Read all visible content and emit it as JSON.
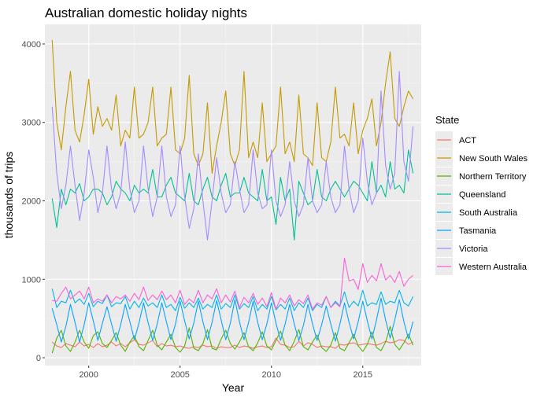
{
  "chart_data": {
    "type": "line",
    "title": "Australian domestic holiday nights",
    "xlabel": "Year",
    "ylabel": "thousands of trips",
    "x_ticks": [
      2000,
      2005,
      2010,
      2015
    ],
    "y_ticks": [
      0,
      1000,
      2000,
      3000,
      4000
    ],
    "xlim": [
      1997.6,
      2018.2
    ],
    "ylim": [
      -100,
      4250
    ],
    "grid": true,
    "legend_title": "State",
    "legend_position": "right",
    "x": [
      1998.0,
      1998.25,
      1998.5,
      1998.75,
      1999.0,
      1999.25,
      1999.5,
      1999.75,
      2000.0,
      2000.25,
      2000.5,
      2000.75,
      2001.0,
      2001.25,
      2001.5,
      2001.75,
      2002.0,
      2002.25,
      2002.5,
      2002.75,
      2003.0,
      2003.25,
      2003.5,
      2003.75,
      2004.0,
      2004.25,
      2004.5,
      2004.75,
      2005.0,
      2005.25,
      2005.5,
      2005.75,
      2006.0,
      2006.25,
      2006.5,
      2006.75,
      2007.0,
      2007.25,
      2007.5,
      2007.75,
      2008.0,
      2008.25,
      2008.5,
      2008.75,
      2009.0,
      2009.25,
      2009.5,
      2009.75,
      2010.0,
      2010.25,
      2010.5,
      2010.75,
      2011.0,
      2011.25,
      2011.5,
      2011.75,
      2012.0,
      2012.25,
      2012.5,
      2012.75,
      2013.0,
      2013.25,
      2013.5,
      2013.75,
      2014.0,
      2014.25,
      2014.5,
      2014.75,
      2015.0,
      2015.25,
      2015.5,
      2015.75,
      2016.0,
      2016.25,
      2016.5,
      2016.75,
      2017.0,
      2017.25,
      2017.5,
      2017.75
    ],
    "series": [
      {
        "name": "ACT",
        "color": "#F8766D",
        "values": [
          200,
          150,
          130,
          180,
          160,
          140,
          200,
          150,
          170,
          130,
          180,
          140,
          160,
          200,
          150,
          180,
          140,
          190,
          230,
          170,
          160,
          190,
          220,
          140,
          180,
          150,
          160,
          140,
          150,
          130,
          120,
          140,
          130,
          160,
          140,
          150,
          120,
          140,
          130,
          130,
          160,
          130,
          150,
          140,
          120,
          140,
          150,
          130,
          140,
          250,
          170,
          160,
          130,
          140,
          210,
          150,
          190,
          170,
          130,
          150,
          140,
          140,
          120,
          170,
          160,
          180,
          190,
          160,
          170,
          180,
          170,
          160,
          180,
          210,
          190,
          200,
          230,
          220,
          170,
          200
        ]
      },
      {
        "name": "New South Wales",
        "color": "#C49A00",
        "values": [
          4050,
          3000,
          2650,
          3200,
          3650,
          2900,
          2750,
          3100,
          3550,
          2850,
          3200,
          2950,
          3050,
          2900,
          3350,
          2700,
          2900,
          2800,
          3450,
          2800,
          2850,
          3000,
          3450,
          2700,
          2800,
          2850,
          3450,
          2650,
          2600,
          2800,
          3600,
          2600,
          2450,
          2600,
          3250,
          2350,
          2700,
          3000,
          3400,
          2600,
          2450,
          2650,
          3650,
          2550,
          2750,
          2550,
          3250,
          2500,
          2600,
          2700,
          3450,
          2600,
          2750,
          2500,
          3350,
          2600,
          2550,
          2450,
          3250,
          2550,
          2500,
          2750,
          3450,
          2800,
          2850,
          2700,
          3250,
          2600,
          2900,
          3050,
          3300,
          2700,
          3000,
          3500,
          3900,
          3050,
          2950,
          3200,
          3400,
          3300
        ]
      },
      {
        "name": "Northern Territory",
        "color": "#53B400",
        "values": [
          60,
          250,
          350,
          150,
          80,
          200,
          350,
          200,
          120,
          280,
          330,
          180,
          130,
          220,
          320,
          160,
          80,
          200,
          280,
          140,
          90,
          220,
          350,
          160,
          100,
          200,
          300,
          130,
          70,
          150,
          380,
          120,
          90,
          180,
          360,
          120,
          100,
          240,
          350,
          180,
          110,
          200,
          320,
          140,
          90,
          190,
          330,
          150,
          100,
          220,
          340,
          160,
          90,
          210,
          360,
          140,
          100,
          200,
          290,
          130,
          80,
          160,
          320,
          120,
          90,
          190,
          300,
          150,
          80,
          170,
          330,
          130,
          90,
          200,
          400,
          170,
          100,
          190,
          300,
          160
        ]
      },
      {
        "name": "Queensland",
        "color": "#00C094",
        "values": [
          2030,
          1660,
          2150,
          1950,
          2150,
          2100,
          2220,
          2000,
          2050,
          2150,
          2150,
          2100,
          1950,
          2050,
          2250,
          2150,
          2100,
          2000,
          2200,
          2100,
          2150,
          2100,
          2400,
          2050,
          2050,
          2200,
          2300,
          2100,
          2050,
          2000,
          2350,
          2000,
          1950,
          2150,
          2300,
          2050,
          2000,
          2200,
          2350,
          2050,
          2100,
          2100,
          2300,
          2100,
          2050,
          2000,
          2400,
          2000,
          2050,
          1700,
          2300,
          2000,
          2150,
          1500,
          2250,
          2100,
          1950,
          2000,
          2400,
          2050,
          2000,
          2150,
          2250,
          2150,
          2050,
          2150,
          2250,
          2200,
          2100,
          2000,
          2500,
          2100,
          2200,
          2050,
          2500,
          2150,
          2200,
          2100,
          2650,
          2350
        ]
      },
      {
        "name": "South Australia",
        "color": "#00B6EB",
        "values": [
          880,
          640,
          720,
          700,
          860,
          700,
          750,
          680,
          820,
          650,
          720,
          690,
          800,
          650,
          700,
          690,
          780,
          620,
          720,
          640,
          760,
          660,
          700,
          640,
          800,
          640,
          680,
          600,
          770,
          630,
          700,
          640,
          760,
          620,
          680,
          640,
          800,
          620,
          690,
          640,
          800,
          620,
          690,
          640,
          780,
          600,
          680,
          620,
          780,
          610,
          680,
          620,
          760,
          600,
          700,
          640,
          760,
          600,
          680,
          640,
          780,
          640,
          720,
          660,
          840,
          640,
          720,
          660,
          860,
          660,
          700,
          680,
          840,
          680,
          720,
          700,
          860,
          700,
          660,
          780
        ]
      },
      {
        "name": "Tasmania",
        "color": "#06A4FF",
        "values": [
          630,
          420,
          200,
          400,
          680,
          450,
          200,
          420,
          700,
          470,
          220,
          440,
          650,
          430,
          210,
          420,
          680,
          460,
          230,
          440,
          700,
          450,
          220,
          430,
          700,
          460,
          230,
          430,
          720,
          470,
          240,
          440,
          720,
          460,
          230,
          450,
          730,
          480,
          230,
          440,
          740,
          460,
          230,
          450,
          720,
          450,
          230,
          430,
          700,
          440,
          220,
          430,
          680,
          430,
          220,
          410,
          680,
          430,
          220,
          420,
          660,
          430,
          210,
          430,
          700,
          450,
          240,
          460,
          720,
          470,
          240,
          480,
          760,
          480,
          250,
          480,
          740,
          460,
          240,
          460
        ]
      },
      {
        "name": "Victoria",
        "color": "#A58AFF",
        "values": [
          3200,
          2350,
          1900,
          2200,
          2700,
          2200,
          1750,
          2100,
          2650,
          2300,
          1850,
          2100,
          2700,
          2150,
          1900,
          2100,
          2750,
          2150,
          1850,
          2000,
          2700,
          2150,
          1800,
          2050,
          2700,
          2050,
          1800,
          1950,
          2700,
          2050,
          1650,
          1900,
          2600,
          2000,
          1500,
          2000,
          2550,
          2100,
          1850,
          1950,
          2500,
          2150,
          1850,
          1950,
          2650,
          2100,
          1900,
          1950,
          2650,
          2000,
          1800,
          1950,
          2500,
          2000,
          1800,
          1950,
          2550,
          2000,
          1850,
          1950,
          2500,
          2050,
          1850,
          1950,
          2700,
          2150,
          1850,
          2000,
          2800,
          2250,
          1950,
          2100,
          3400,
          2450,
          2150,
          2350,
          3650,
          2500,
          2250,
          2950
        ]
      },
      {
        "name": "Western Australia",
        "color": "#FB61D7",
        "values": [
          730,
          720,
          820,
          900,
          750,
          800,
          850,
          750,
          900,
          700,
          750,
          720,
          800,
          700,
          780,
          750,
          800,
          720,
          820,
          740,
          900,
          730,
          800,
          740,
          850,
          740,
          800,
          700,
          860,
          680,
          750,
          700,
          860,
          700,
          800,
          750,
          880,
          700,
          800,
          710,
          850,
          640,
          770,
          700,
          820,
          680,
          760,
          650,
          830,
          620,
          760,
          700,
          800,
          660,
          740,
          690,
          800,
          620,
          700,
          670,
          780,
          640,
          700,
          650,
          1270,
          980,
          1000,
          870,
          1200,
          960,
          1050,
          980,
          1200,
          990,
          1050,
          960,
          1100,
          910,
          1000,
          1050
        ]
      }
    ]
  }
}
